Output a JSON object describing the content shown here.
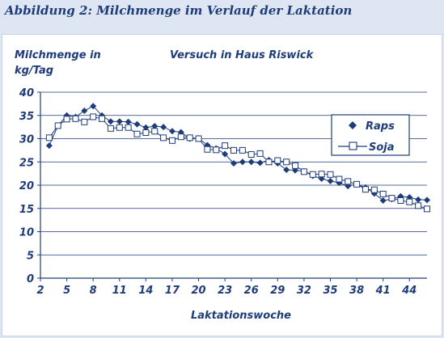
{
  "figure_title": "Abbildung 2: Milchmenge im Verlauf der Laktation",
  "chart_data": {
    "type": "line",
    "title": "Versuch in Haus Riswick",
    "ylabel": "Milchmenge in kg/Tag",
    "ylabel_lines": [
      "Milchmenge in",
      "kg/Tag"
    ],
    "xlabel": "Laktationswoche",
    "xlim": [
      2,
      46
    ],
    "ylim": [
      0,
      40
    ],
    "x_ticks": [
      2,
      5,
      8,
      11,
      14,
      17,
      20,
      23,
      26,
      29,
      32,
      35,
      38,
      41,
      44
    ],
    "y_ticks": [
      0,
      5,
      10,
      15,
      20,
      25,
      30,
      35,
      40
    ],
    "grid": "horizontal",
    "legend_position": "right",
    "series": [
      {
        "name": "Raps",
        "marker": "diamond",
        "color": "#1f3c7a",
        "x": [
          3,
          4,
          5,
          6,
          7,
          8,
          9,
          10,
          11,
          12,
          13,
          14,
          15,
          16,
          17,
          18,
          19,
          20,
          21,
          22,
          23,
          24,
          25,
          26,
          27,
          28,
          29,
          30,
          31,
          32,
          33,
          34,
          35,
          36,
          37,
          38,
          39,
          40,
          41,
          42,
          43,
          44,
          45,
          46
        ],
        "y": [
          28.5,
          32.8,
          35.0,
          34.7,
          36.0,
          37.0,
          35.0,
          33.7,
          33.7,
          33.6,
          33.1,
          32.4,
          32.7,
          32.5,
          31.6,
          31.4,
          30.0,
          30.1,
          28.6,
          27.9,
          26.7,
          24.7,
          25.0,
          25.0,
          24.8,
          25.4,
          24.7,
          23.3,
          23.2,
          23.0,
          22.0,
          21.4,
          20.9,
          20.5,
          19.8,
          20.2,
          19.5,
          18.2,
          16.7,
          17.0,
          17.6,
          17.4,
          16.9,
          16.8
        ]
      },
      {
        "name": "Soja",
        "marker": "square",
        "color": "#1f3c7a",
        "x": [
          3,
          4,
          5,
          6,
          7,
          8,
          9,
          10,
          11,
          12,
          13,
          14,
          15,
          16,
          17,
          18,
          19,
          20,
          21,
          22,
          23,
          24,
          25,
          26,
          27,
          28,
          29,
          30,
          31,
          32,
          33,
          34,
          35,
          36,
          37,
          38,
          39,
          40,
          41,
          42,
          43,
          44,
          45,
          46
        ],
        "y": [
          30.2,
          32.8,
          34.2,
          34.3,
          33.6,
          34.7,
          34.3,
          32.2,
          32.4,
          32.4,
          31.0,
          31.3,
          31.6,
          30.2,
          29.6,
          30.4,
          30.2,
          30.0,
          27.7,
          27.6,
          28.5,
          27.5,
          27.5,
          26.6,
          26.8,
          25.0,
          25.3,
          25.0,
          24.2,
          22.9,
          22.3,
          22.4,
          22.3,
          21.3,
          20.8,
          20.2,
          19.1,
          19.0,
          18.1,
          17.2,
          16.7,
          16.4,
          15.6,
          14.9
        ]
      }
    ]
  }
}
